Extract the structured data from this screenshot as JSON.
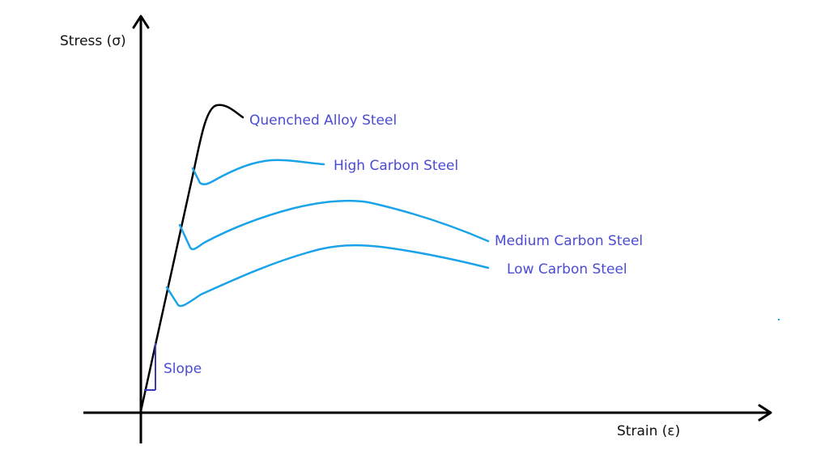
{
  "axes": {
    "y_label": "Stress (σ)",
    "x_label": "Strain (ε)"
  },
  "curves": [
    {
      "label": "Quenched Alloy Steel",
      "color": "#000000"
    },
    {
      "label": "High Carbon Steel",
      "color": "#1aa3e8"
    },
    {
      "label": "Medium Carbon Steel",
      "color": "#1aa3e8"
    },
    {
      "label": "Low Carbon Steel",
      "color": "#1aa3e8"
    }
  ],
  "slope": {
    "label": "Slope",
    "color": "#3a3ab8"
  },
  "colors": {
    "axis": "#000000",
    "label_text": "#4b4bd6",
    "curve": "#1aa3e8"
  }
}
